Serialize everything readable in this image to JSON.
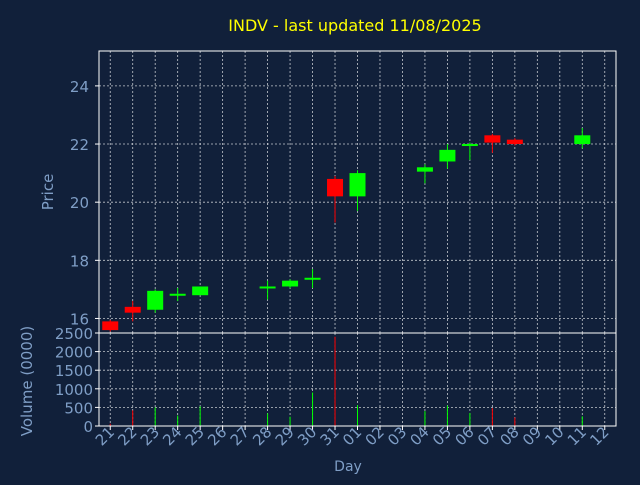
{
  "page": {
    "background": "#11203a",
    "frame_color": "#ffffff",
    "grid_color": "#ffffff",
    "tick_label_color": "#7f9ec6",
    "title_color": "#ffff00",
    "up_color": "#00ff00",
    "down_color": "#ff0000"
  },
  "chart_data": [
    {
      "type": "candlestick",
      "title": "INDV - last updated 11/08/2025",
      "ylabel": "Price",
      "ylim": [
        15.5,
        25.2
      ],
      "yticks": [
        16,
        18,
        20,
        22,
        24
      ],
      "grid": true,
      "categories": [
        "21",
        "22",
        "23",
        "24",
        "25",
        "26",
        "27",
        "28",
        "29",
        "30",
        "31",
        "01",
        "02",
        "03",
        "04",
        "05",
        "06",
        "07",
        "08",
        "09",
        "10",
        "11",
        "12"
      ],
      "candles": [
        {
          "x": "21",
          "open": 15.9,
          "close": 15.6,
          "high": 15.95,
          "low": 15.55
        },
        {
          "x": "22",
          "open": 16.4,
          "close": 16.2,
          "high": 16.6,
          "low": 15.9
        },
        {
          "x": "23",
          "open": 16.3,
          "close": 16.95,
          "high": 17.0,
          "low": 16.2
        },
        {
          "x": "24",
          "open": 16.8,
          "close": 16.85,
          "high": 17.05,
          "low": 16.6
        },
        {
          "x": "25",
          "open": 16.8,
          "close": 17.1,
          "high": 17.1,
          "low": 16.8
        },
        {
          "x": "28",
          "open": 17.05,
          "close": 17.1,
          "high": 17.3,
          "low": 16.65
        },
        {
          "x": "29",
          "open": 17.1,
          "close": 17.3,
          "high": 17.35,
          "low": 17.05
        },
        {
          "x": "30",
          "open": 17.35,
          "close": 17.4,
          "high": 17.7,
          "low": 17.05
        },
        {
          "x": "31",
          "open": 20.8,
          "close": 20.2,
          "high": 20.9,
          "low": 19.3
        },
        {
          "x": "01",
          "open": 20.2,
          "close": 21.0,
          "high": 21.1,
          "low": 19.7
        },
        {
          "x": "04",
          "open": 21.05,
          "close": 21.2,
          "high": 21.3,
          "low": 20.65
        },
        {
          "x": "05",
          "open": 21.4,
          "close": 21.8,
          "high": 22.0,
          "low": 21.15
        },
        {
          "x": "06",
          "open": 21.95,
          "close": 22.0,
          "high": 22.05,
          "low": 21.45
        },
        {
          "x": "07",
          "open": 22.3,
          "close": 22.05,
          "high": 22.35,
          "low": 21.7
        },
        {
          "x": "08",
          "open": 22.15,
          "close": 22.0,
          "high": 22.2,
          "low": 21.95
        },
        {
          "x": "11",
          "open": 22.0,
          "close": 22.3,
          "high": 22.55,
          "low": 21.85
        }
      ]
    },
    {
      "type": "bar",
      "ylabel": "Volume (0000)",
      "xlabel": "Day",
      "ylim": [
        0,
        2500
      ],
      "yticks": [
        0,
        500,
        1000,
        1500,
        2000,
        2500
      ],
      "grid": true,
      "categories": [
        "21",
        "22",
        "23",
        "24",
        "25",
        "26",
        "27",
        "28",
        "29",
        "30",
        "31",
        "01",
        "02",
        "03",
        "04",
        "05",
        "06",
        "07",
        "08",
        "09",
        "10",
        "11",
        "12"
      ],
      "bars": [
        {
          "x": "21",
          "value": 60,
          "direction": "down"
        },
        {
          "x": "22",
          "value": 420,
          "direction": "down"
        },
        {
          "x": "23",
          "value": 500,
          "direction": "up"
        },
        {
          "x": "24",
          "value": 280,
          "direction": "up"
        },
        {
          "x": "25",
          "value": 530,
          "direction": "up"
        },
        {
          "x": "28",
          "value": 340,
          "direction": "up"
        },
        {
          "x": "29",
          "value": 250,
          "direction": "up"
        },
        {
          "x": "30",
          "value": 900,
          "direction": "up"
        },
        {
          "x": "31",
          "value": 2400,
          "direction": "down"
        },
        {
          "x": "01",
          "value": 560,
          "direction": "up"
        },
        {
          "x": "04",
          "value": 400,
          "direction": "up"
        },
        {
          "x": "05",
          "value": 550,
          "direction": "up"
        },
        {
          "x": "06",
          "value": 350,
          "direction": "up"
        },
        {
          "x": "07",
          "value": 480,
          "direction": "down"
        },
        {
          "x": "08",
          "value": 230,
          "direction": "down"
        },
        {
          "x": "11",
          "value": 260,
          "direction": "up"
        }
      ]
    }
  ]
}
